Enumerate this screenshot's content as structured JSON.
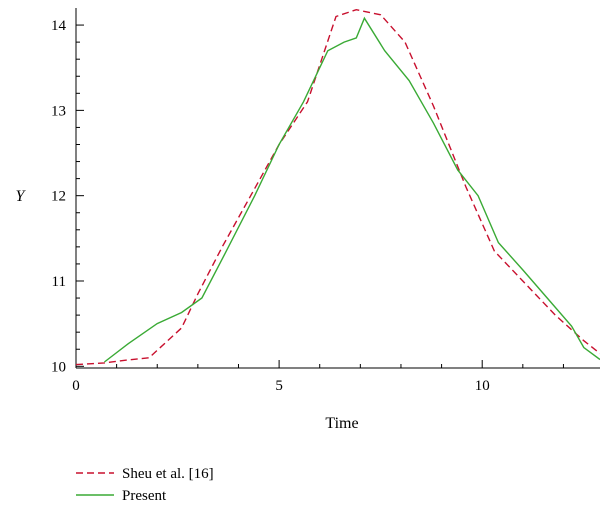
{
  "chart_data": {
    "type": "line",
    "xlabel": "Time",
    "ylabel": "Y",
    "xlim": [
      0,
      12.9
    ],
    "ylim": [
      9.98,
      14.2
    ],
    "xticks": [
      0,
      5,
      10
    ],
    "yticks": [
      10,
      11,
      12,
      13,
      14
    ],
    "xtick_labels": [
      "0",
      "5",
      "10"
    ],
    "ytick_labels": [
      "10",
      "11",
      "12",
      "13",
      "14"
    ],
    "legend_position": "bottom-left",
    "grid": false,
    "series": [
      {
        "name": "Sheu et al. [16]",
        "color": "#c8102e",
        "style": "dashed",
        "x": [
          0,
          0.7,
          1.2,
          1.8,
          2.6,
          3.0,
          3.6,
          4.3,
          5.0,
          5.7,
          6.4,
          6.9,
          7.5,
          8.1,
          8.8,
          9.6,
          10.3,
          11.0,
          11.8,
          12.5,
          12.9
        ],
        "y": [
          10.02,
          10.04,
          10.07,
          10.1,
          10.45,
          10.85,
          11.4,
          12.0,
          12.6,
          13.1,
          14.1,
          14.18,
          14.12,
          13.8,
          13.05,
          12.1,
          11.35,
          11.0,
          10.6,
          10.3,
          10.15
        ]
      },
      {
        "name": "Present",
        "color": "#3aaa35",
        "style": "solid",
        "x": [
          0.7,
          1.3,
          2.0,
          2.6,
          3.1,
          3.7,
          4.4,
          5.0,
          5.6,
          5.9,
          6.2,
          6.6,
          6.9,
          7.1,
          7.6,
          8.2,
          8.8,
          9.4,
          9.9,
          10.4,
          11.0,
          11.6,
          12.2,
          12.5,
          12.9
        ],
        "y": [
          10.05,
          10.27,
          10.5,
          10.63,
          10.8,
          11.35,
          12.0,
          12.6,
          13.1,
          13.4,
          13.7,
          13.8,
          13.85,
          14.08,
          13.7,
          13.35,
          12.85,
          12.3,
          12.0,
          11.45,
          11.13,
          10.8,
          10.47,
          10.22,
          10.08
        ]
      }
    ]
  }
}
